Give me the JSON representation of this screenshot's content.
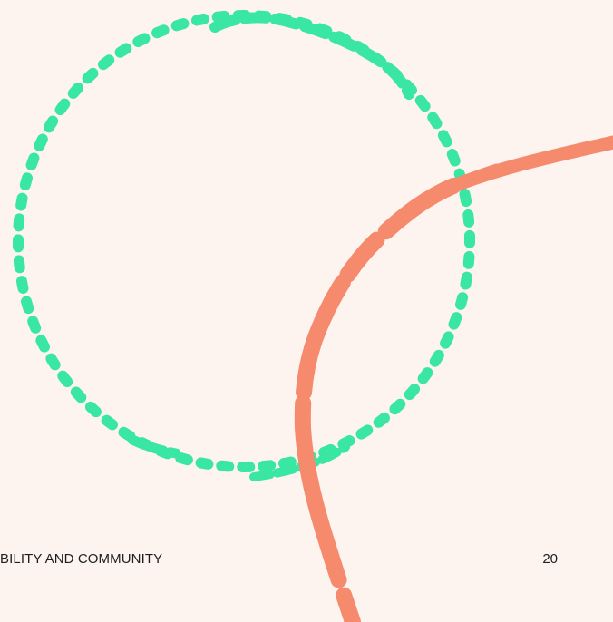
{
  "footer": {
    "section_title": "BILITY AND COMMUNITY",
    "page_number": "20"
  },
  "colors": {
    "background": "#fdf3ef",
    "green_ring": "#39e6a2",
    "orange_arc": "#f58a6d",
    "rule": "#3a3a3a",
    "text": "#1f1f1f"
  }
}
